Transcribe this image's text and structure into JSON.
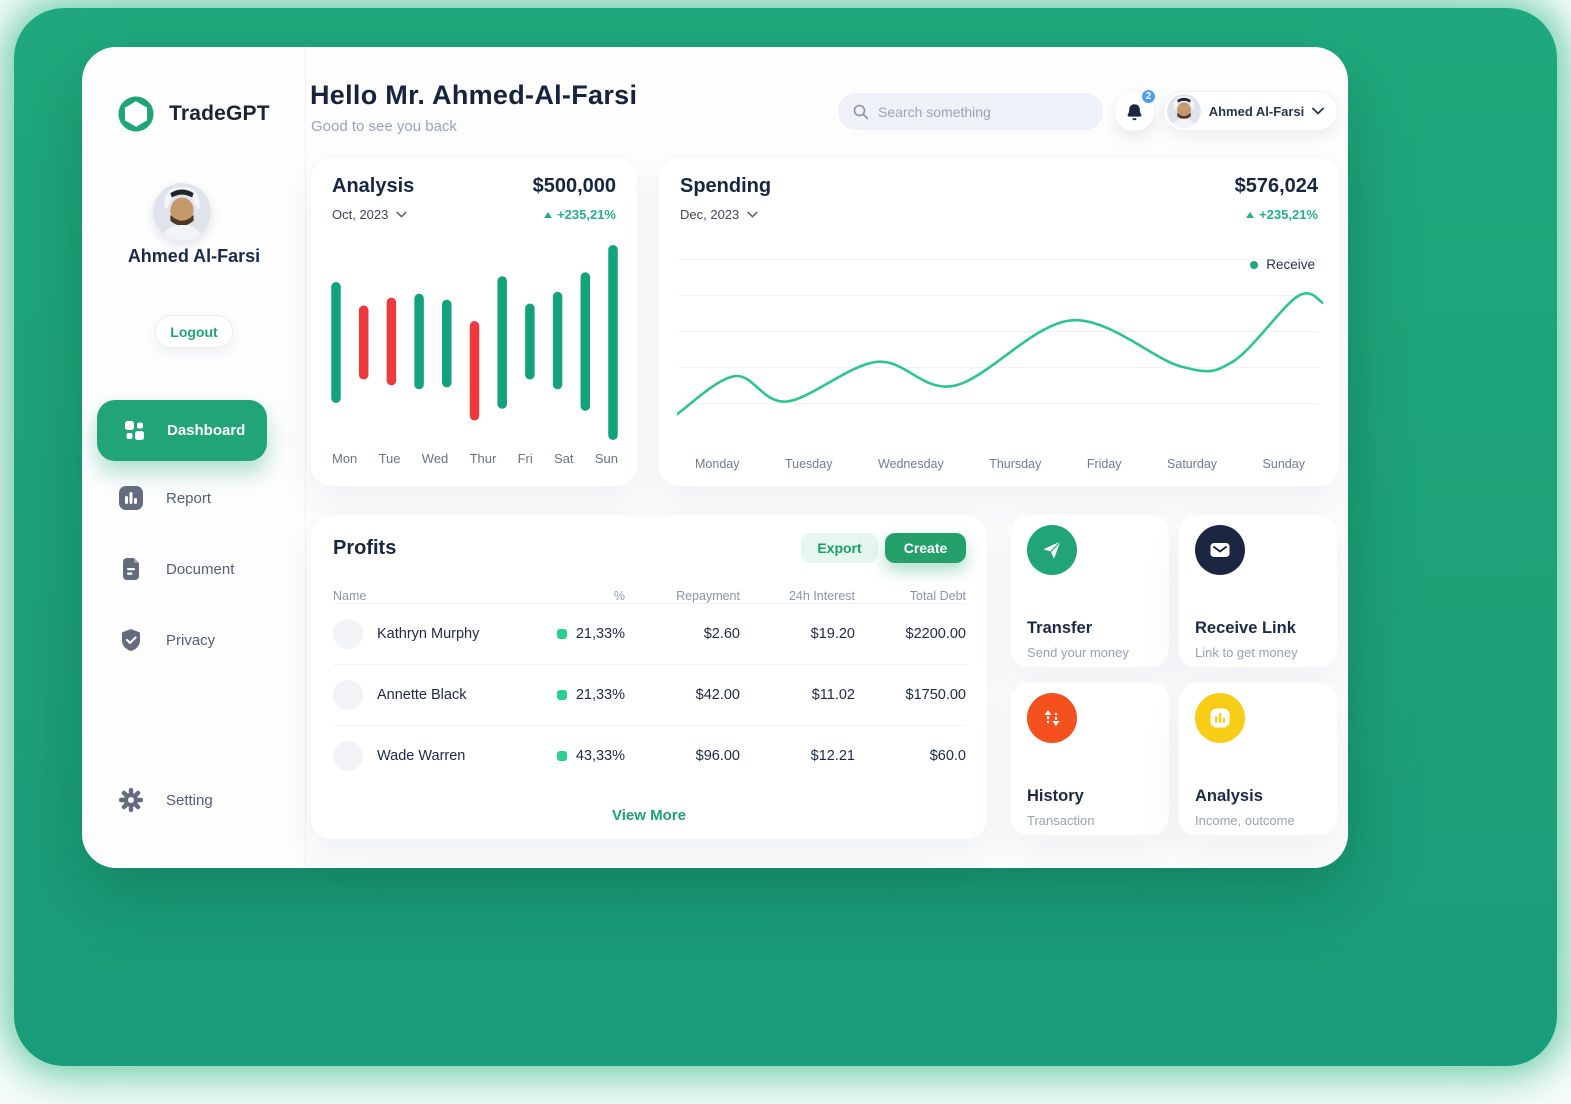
{
  "app": {
    "brand": "TradeGPT"
  },
  "colors": {
    "accent": "#1ea578",
    "bar_green": "#13a37c",
    "bar_red": "#ee3a3c",
    "line_green": "#2cc592",
    "navy": "#1b2642",
    "orange": "#f4511e",
    "yellow": "#f7cd15",
    "badge_blue": "#4d9df6",
    "dot_green": "#2bd08e"
  },
  "sidebar": {
    "user_name": "Ahmed Al-Farsi",
    "logout_label": "Logout",
    "items": [
      {
        "label": "Dashboard",
        "icon": "grid-icon",
        "active": true
      },
      {
        "label": "Report",
        "icon": "report-icon"
      },
      {
        "label": "Document",
        "icon": "document-icon"
      },
      {
        "label": "Privacy",
        "icon": "shield-icon"
      }
    ],
    "setting_label": "Setting"
  },
  "header": {
    "greeting": "Hello Mr. Ahmed-Al-Farsi",
    "subtitle": "Good to see you back",
    "search_placeholder": "Search something",
    "notification_count": "2",
    "user_name": "Ahmed Al-Farsi"
  },
  "analysis_card": {
    "title": "Analysis",
    "period": "Oct, 2023",
    "amount": "$500,000",
    "change": "+235,21%",
    "days": [
      "Mon",
      "Tue",
      "Wed",
      "Thur",
      "Fri",
      "Sat",
      "Sun"
    ]
  },
  "spending_card": {
    "title": "Spending",
    "period": "Dec, 2023",
    "amount": "$576,024",
    "change": "+235,21%",
    "legend": "Receive",
    "days": [
      "Monday",
      "Tuesday",
      "Wednesday",
      "Thursday",
      "Friday",
      "Saturday",
      "Sunday"
    ]
  },
  "profits": {
    "title": "Profits",
    "export_label": "Export",
    "create_label": "Create",
    "view_more": "View More",
    "columns": [
      "Name",
      "%",
      "Repayment",
      "24h Interest",
      "Total Debt"
    ],
    "rows": [
      {
        "name": "Kathryn Murphy",
        "percent": "21,33%",
        "repayment": "$2.60",
        "interest": "$19.20",
        "debt": "$2200.00"
      },
      {
        "name": "Annette Black",
        "percent": "21,33%",
        "repayment": "$42.00",
        "interest": "$11.02",
        "debt": "$1750.00"
      },
      {
        "name": "Wade Warren",
        "percent": "43,33%",
        "repayment": "$96.00",
        "interest": "$12.21",
        "debt": "$60.0"
      }
    ]
  },
  "quick_actions": [
    {
      "title": "Transfer",
      "subtitle": "Send your money",
      "icon": "paper-plane-icon",
      "color": "#21a477"
    },
    {
      "title": "Receive Link",
      "subtitle": "Link to get money",
      "icon": "envelope-icon",
      "color": "#1b2642"
    },
    {
      "title": "History",
      "subtitle": "Transaction",
      "icon": "swap-arrows-icon",
      "color": "#f4511e"
    },
    {
      "title": "Analysis",
      "subtitle": "Income, outcome",
      "icon": "mini-bars-icon",
      "color": "#f7cd15"
    }
  ],
  "chart_data": [
    {
      "type": "bar",
      "style": "floating-range-candles",
      "title": "Analysis",
      "period": "Oct, 2023",
      "total": "$500,000",
      "change": "+235,21%",
      "categories": [
        "Mon",
        "Tue",
        "Wed",
        "Thur",
        "Fri",
        "Sat",
        "Sun"
      ],
      "ylim": [
        0,
        100
      ],
      "bars": [
        {
          "low": 19,
          "high": 81,
          "dir": "up"
        },
        {
          "low": 31,
          "high": 69,
          "dir": "down"
        },
        {
          "low": 28,
          "high": 73,
          "dir": "down"
        },
        {
          "low": 26,
          "high": 75,
          "dir": "up"
        },
        {
          "low": 27,
          "high": 72,
          "dir": "up"
        },
        {
          "low": 10,
          "high": 61,
          "dir": "down"
        },
        {
          "low": 16,
          "high": 84,
          "dir": "up"
        },
        {
          "low": 31,
          "high": 70,
          "dir": "up"
        },
        {
          "low": 26,
          "high": 76,
          "dir": "up"
        },
        {
          "low": 15,
          "high": 86,
          "dir": "up"
        },
        {
          "low": 0,
          "high": 100,
          "dir": "up"
        }
      ]
    },
    {
      "type": "line",
      "title": "Spending",
      "period": "Dec, 2023",
      "total": "$576,024",
      "change": "+235,21%",
      "legend": [
        "Receive"
      ],
      "legend_position": "top-right",
      "categories": [
        "Monday",
        "Tuesday",
        "Wednesday",
        "Thursday",
        "Friday",
        "Saturday",
        "Sunday"
      ],
      "ylim": [
        0,
        100
      ],
      "grid": true,
      "gridline_count": 5,
      "curve_points": [
        [
          0,
          3
        ],
        [
          9,
          27
        ],
        [
          17,
          11
        ],
        [
          31,
          36
        ],
        [
          43,
          21
        ],
        [
          61,
          62
        ],
        [
          78,
          33
        ],
        [
          86,
          36
        ],
        [
          96,
          77
        ],
        [
          100,
          73
        ]
      ]
    }
  ]
}
